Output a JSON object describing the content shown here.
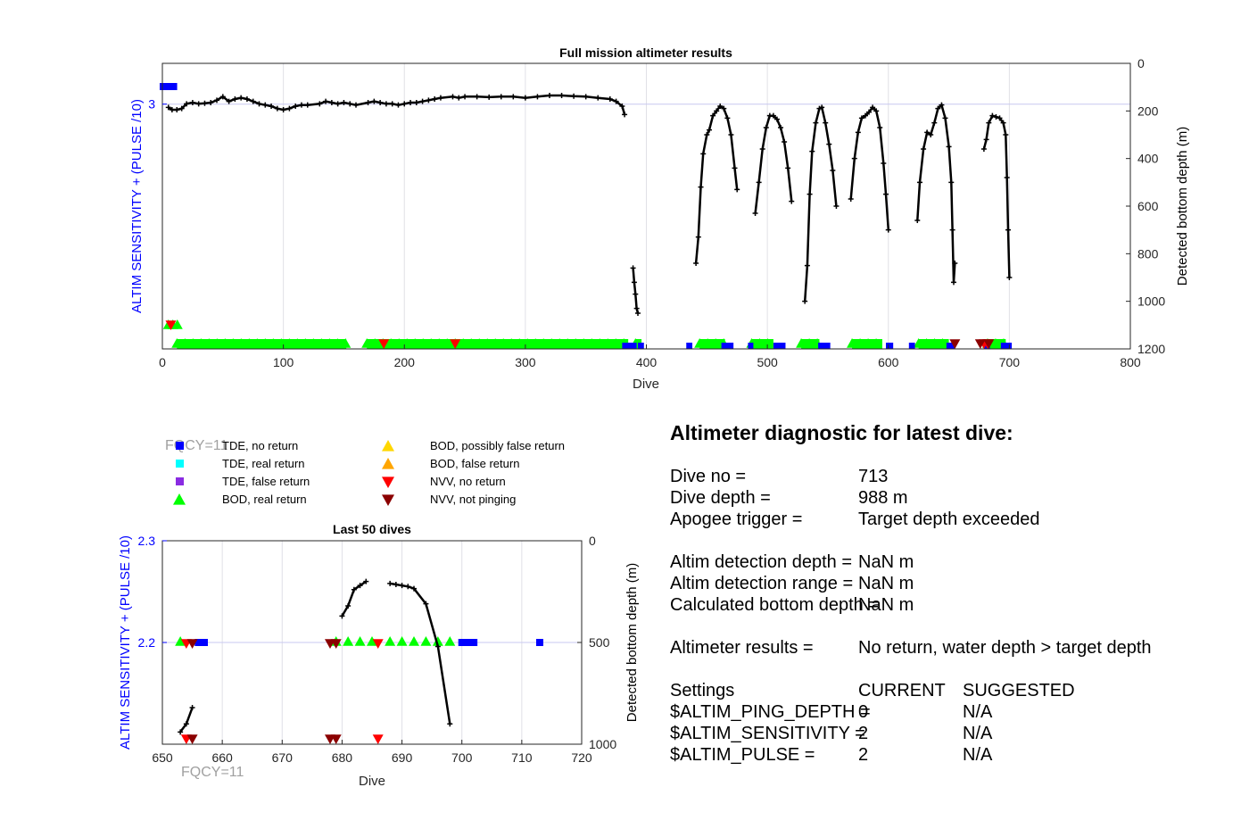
{
  "colors": {
    "tde_no_return": "#0000ff",
    "tde_real_return": "#00ffff",
    "tde_false_return": "#8a2be2",
    "bod_real_return": "#00ff00",
    "bod_possibly_false": "#ffd700",
    "bod_false_return": "#ffa500",
    "nvv_no_return": "#ff0000",
    "nvv_not_pinging": "#8b0000",
    "depth_line": "#000000",
    "left_axis": "#0000ff",
    "fqcy_label": "#a0a0a0"
  },
  "chart_data": [
    {
      "type": "scatter",
      "title": "Full mission altimeter results",
      "xlabel": "Dive",
      "ylabel_left": "ALTIM SENSITIVITY + (PULSE /10)",
      "ylabel_right": "Detected bottom depth (m)",
      "xlim": [
        0,
        800
      ],
      "xticks": [
        "0",
        "100",
        "200",
        "300",
        "400",
        "500",
        "600",
        "700",
        "800"
      ],
      "ylim_left": [
        2.4,
        3.1
      ],
      "yticks_left": [
        "3"
      ],
      "ylim_right": [
        0,
        1200
      ],
      "yticks_right": [
        "0",
        "200",
        "400",
        "600",
        "800",
        "1000",
        "1200"
      ],
      "grid": true,
      "depth_series": [
        [
          [
            5,
            185
          ],
          [
            8,
            195
          ],
          [
            12,
            195
          ],
          [
            16,
            190
          ],
          [
            20,
            170
          ],
          [
            25,
            165
          ],
          [
            30,
            170
          ],
          [
            35,
            168
          ],
          [
            40,
            165
          ],
          [
            45,
            155
          ],
          [
            50,
            140
          ],
          [
            55,
            160
          ],
          [
            60,
            150
          ],
          [
            65,
            145
          ],
          [
            70,
            150
          ],
          [
            75,
            160
          ],
          [
            80,
            170
          ],
          [
            85,
            175
          ],
          [
            90,
            180
          ],
          [
            95,
            190
          ],
          [
            100,
            195
          ],
          [
            105,
            190
          ],
          [
            110,
            180
          ],
          [
            115,
            175
          ],
          [
            120,
            175
          ],
          [
            130,
            170
          ],
          [
            135,
            160
          ],
          [
            140,
            165
          ],
          [
            145,
            170
          ],
          [
            150,
            165
          ],
          [
            155,
            170
          ],
          [
            160,
            175
          ],
          [
            170,
            165
          ],
          [
            175,
            160
          ],
          [
            180,
            165
          ],
          [
            185,
            170
          ],
          [
            190,
            170
          ],
          [
            195,
            175
          ],
          [
            200,
            170
          ],
          [
            205,
            165
          ],
          [
            210,
            165
          ],
          [
            215,
            160
          ],
          [
            220,
            155
          ],
          [
            225,
            150
          ],
          [
            230,
            145
          ],
          [
            240,
            140
          ],
          [
            245,
            145
          ],
          [
            250,
            140
          ],
          [
            260,
            140
          ],
          [
            270,
            142
          ],
          [
            280,
            140
          ],
          [
            290,
            140
          ],
          [
            300,
            145
          ],
          [
            310,
            140
          ],
          [
            320,
            135
          ],
          [
            330,
            135
          ],
          [
            340,
            138
          ],
          [
            350,
            140
          ],
          [
            360,
            145
          ],
          [
            370,
            150
          ],
          [
            375,
            160
          ],
          [
            380,
            180
          ],
          [
            382,
            215
          ]
        ],
        [
          [
            389,
            860
          ],
          [
            390,
            920
          ],
          [
            391,
            970
          ],
          [
            392,
            1030
          ],
          [
            393,
            1050
          ]
        ],
        [
          [
            441,
            840
          ],
          [
            443,
            730
          ],
          [
            445,
            520
          ],
          [
            447,
            380
          ],
          [
            450,
            300
          ],
          [
            452,
            280
          ],
          [
            455,
            220
          ],
          [
            458,
            200
          ],
          [
            461,
            180
          ],
          [
            464,
            190
          ],
          [
            467,
            230
          ],
          [
            470,
            300
          ],
          [
            473,
            440
          ],
          [
            475,
            530
          ]
        ],
        [
          [
            490,
            630
          ],
          [
            493,
            500
          ],
          [
            496,
            360
          ],
          [
            499,
            270
          ],
          [
            502,
            220
          ],
          [
            505,
            220
          ],
          [
            508,
            235
          ],
          [
            511,
            270
          ],
          [
            514,
            330
          ],
          [
            517,
            440
          ],
          [
            520,
            580
          ]
        ],
        [
          [
            531,
            1000
          ],
          [
            533,
            850
          ],
          [
            535,
            550
          ],
          [
            537,
            370
          ],
          [
            540,
            250
          ],
          [
            543,
            190
          ],
          [
            545,
            185
          ],
          [
            548,
            250
          ],
          [
            551,
            340
          ],
          [
            554,
            450
          ],
          [
            557,
            600
          ]
        ],
        [
          [
            569,
            570
          ],
          [
            572,
            400
          ],
          [
            575,
            290
          ],
          [
            578,
            230
          ],
          [
            581,
            220
          ],
          [
            584,
            205
          ],
          [
            587,
            185
          ],
          [
            590,
            200
          ],
          [
            593,
            270
          ],
          [
            596,
            420
          ],
          [
            598,
            550
          ],
          [
            600,
            700
          ]
        ],
        [
          [
            624,
            660
          ],
          [
            626,
            500
          ],
          [
            629,
            360
          ],
          [
            632,
            290
          ],
          [
            635,
            300
          ],
          [
            638,
            250
          ],
          [
            641,
            190
          ],
          [
            644,
            175
          ],
          [
            647,
            230
          ],
          [
            650,
            350
          ],
          [
            652,
            500
          ],
          [
            653,
            700
          ],
          [
            654,
            920
          ],
          [
            655,
            840
          ]
        ],
        [
          [
            679,
            360
          ],
          [
            681,
            320
          ],
          [
            683,
            250
          ],
          [
            686,
            220
          ],
          [
            689,
            225
          ],
          [
            692,
            230
          ],
          [
            695,
            250
          ],
          [
            697,
            300
          ],
          [
            698,
            480
          ],
          [
            699,
            700
          ],
          [
            700,
            900
          ]
        ]
      ],
      "bod_real_return_ranges": [
        [
          12,
          152
        ],
        [
          169,
          385
        ],
        [
          391,
          396
        ],
        [
          444,
          465
        ],
        [
          487,
          505
        ],
        [
          528,
          543
        ],
        [
          570,
          595
        ],
        [
          625,
          650
        ],
        [
          682,
          697
        ]
      ],
      "tde_no_return_ranges": [
        [
          380,
          392
        ],
        [
          393,
          398
        ],
        [
          433,
          438
        ],
        [
          462,
          472
        ],
        [
          484,
          488
        ],
        [
          505,
          515
        ],
        [
          542,
          552
        ],
        [
          598,
          604
        ],
        [
          617,
          622
        ],
        [
          648,
          655
        ],
        [
          679,
          684
        ],
        [
          693,
          702
        ]
      ],
      "tde_upper_marker_range": [
        0,
        10
      ],
      "early_bod_range": [
        5,
        15
      ],
      "nvv_no_return_dives": [
        7,
        183,
        242,
        679,
        682
      ],
      "nvv_not_pinging_dives": [
        655,
        676,
        683
      ],
      "fqcy_label": "FQCY=11"
    },
    {
      "type": "scatter",
      "title": "Last 50 dives",
      "xlabel": "Dive",
      "ylabel_left": "ALTIM SENSITIVITY + (PULSE /10)",
      "ylabel_right": "Detected bottom depth (m)",
      "xlim": [
        650,
        720
      ],
      "xticks": [
        "650",
        "660",
        "670",
        "680",
        "690",
        "700",
        "710",
        "720"
      ],
      "ylim_left": [
        2.1,
        2.3
      ],
      "yticks_left": [
        "2.2",
        "2.3"
      ],
      "ylim_right": [
        0,
        1000
      ],
      "yticks_right": [
        "0",
        "500",
        "1000"
      ],
      "grid": true,
      "depth_series": [
        [
          [
            653,
            940
          ],
          [
            654,
            900
          ],
          [
            655,
            820
          ]
        ],
        [
          [
            680,
            370
          ],
          [
            681,
            320
          ],
          [
            682,
            240
          ],
          [
            683,
            220
          ],
          [
            684,
            200
          ]
        ],
        [
          [
            688,
            210
          ],
          [
            689,
            215
          ],
          [
            690,
            220
          ],
          [
            691,
            225
          ],
          [
            692,
            235
          ],
          [
            694,
            310
          ],
          [
            696,
            520
          ],
          [
            698,
            900
          ]
        ]
      ],
      "bod_real_return_dives": [
        653,
        679,
        681,
        683,
        685,
        688,
        690,
        692,
        694,
        696,
        698
      ],
      "nvv_no_return_dives": [
        654,
        686
      ],
      "nvv_not_pinging_dives": [
        655,
        678,
        679
      ],
      "tde_no_return_dives": [
        656,
        657,
        700,
        701,
        702,
        713
      ],
      "fqcy_label": "FQCY=11"
    }
  ],
  "legend": {
    "fqcy_overlay": "FQCY=11",
    "items": [
      {
        "label": "TDE, no return",
        "marker": "square",
        "color": "#0000ff"
      },
      {
        "label": "TDE, real return",
        "marker": "square",
        "color": "#00ffff"
      },
      {
        "label": "TDE, false return",
        "marker": "square",
        "color": "#8a2be2"
      },
      {
        "label": "BOD, real return",
        "marker": "triangle-up",
        "color": "#00ff00"
      },
      {
        "label": "BOD, possibly false return",
        "marker": "triangle-up",
        "color": "#ffd700"
      },
      {
        "label": "BOD, false return",
        "marker": "triangle-up",
        "color": "#ffa500"
      },
      {
        "label": "NVV, no return",
        "marker": "triangle-down",
        "color": "#ff0000"
      },
      {
        "label": "NVV, not pinging",
        "marker": "triangle-down",
        "color": "#8b0000"
      }
    ]
  },
  "diagnostic": {
    "title": "Altimeter diagnostic for latest dive:",
    "rows": [
      {
        "label": "Dive no =",
        "value": "713"
      },
      {
        "label": "Dive depth =",
        "value": "988 m"
      },
      {
        "label": "Apogee trigger =",
        "value": "Target depth exceeded"
      },
      {
        "label": "Altim detection depth =",
        "value": "NaN m"
      },
      {
        "label": "Altim detection range =",
        "value": "NaN m"
      },
      {
        "label": "Calculated bottom depth =",
        "value": "NaN m"
      },
      {
        "label": "Altimeter results =",
        "value": "No return, water depth > target depth"
      }
    ],
    "settings": {
      "label": "Settings",
      "current_header": "CURRENT",
      "suggested_header": "SUGGESTED",
      "items": [
        {
          "name": "$ALTIM_PING_DEPTH =",
          "current": "0",
          "suggested": "N/A"
        },
        {
          "name": "$ALTIM_SENSITIVITY =",
          "current": "2",
          "suggested": "N/A"
        },
        {
          "name": "$ALTIM_PULSE =",
          "current": "2",
          "suggested": "N/A"
        }
      ]
    }
  }
}
